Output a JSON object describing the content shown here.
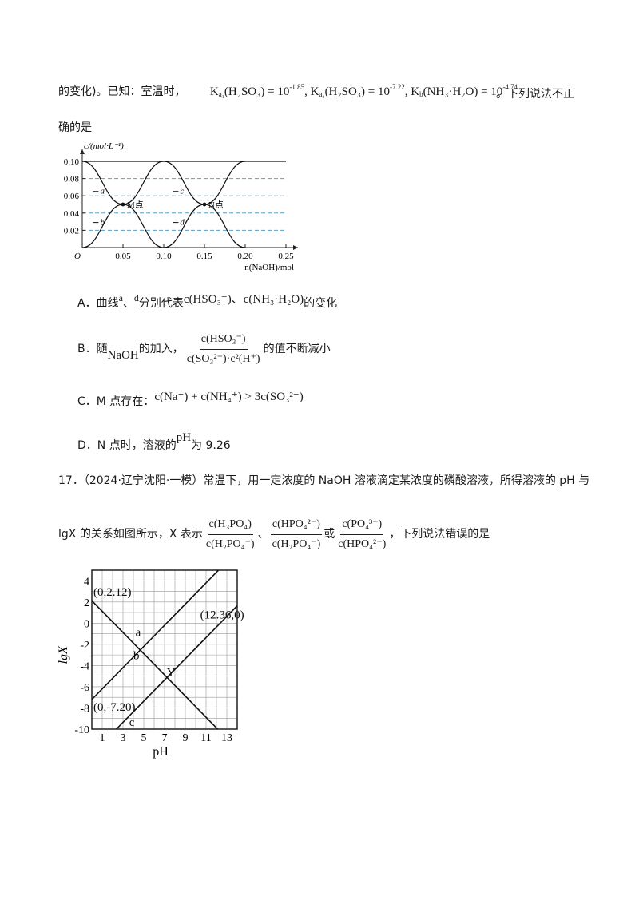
{
  "q16": {
    "intro_prefix": "的变化)。已知：室温时，",
    "ka1": "K",
    "ka1_sub": "a₁",
    "ka1_body": "(H₂SO₃) = 10",
    "ka1_exp": "-1.85",
    "ka2": ", K",
    "ka2_sub": "a₂",
    "ka2_body": "(H₂SO₃) = 10",
    "ka2_exp": "-7.22",
    "kb": ", K",
    "kb_sub": "b",
    "kb_body": "(NH₃·H₂O) = 10",
    "kb_exp": "-4.74",
    "intro_suffix": "。下列说法不正",
    "intro_line2": "确的是",
    "options": {
      "A_prefix": "A．曲线",
      "A_a": "a",
      "A_sep": "、",
      "A_d": "d",
      "A_mid": "分别代表",
      "A_expr": "c(HSO₃⁻)、c(NH₃·H₂O)",
      "A_suffix": "的变化",
      "B_prefix": "B．随",
      "B_naoh": "NaOH",
      "B_mid": "的加入，",
      "B_num": "c(HSO₃⁻)",
      "B_den": "c(SO₃²⁻)·c²(H⁺)",
      "B_suffix": "的值不断减小",
      "C_prefix": "C．M 点存在：",
      "C_expr": "c(Na⁺) + c(NH₄⁺) > 3c(SO₃²⁻)",
      "D_prefix": "D．N 点时，溶液的",
      "D_ph": "pH",
      "D_suffix": "为 9.26"
    }
  },
  "q17": {
    "line1": "17．（2024·辽宁沈阳·一模）常温下，用一定浓度的 NaOH 溶液滴定某浓度的磷酸溶液，所得溶液的 pH 与",
    "line2_prefix": "lgX 的关系如图所示，X 表示",
    "f1_num": "c(H₃PO₄)",
    "f1_den": "c(H₂PO₄⁻)",
    "sep1": "、",
    "f2_num": "c(HPO₄²⁻)",
    "f2_den": "c(H₂PO₄⁻)",
    "sep2": "或",
    "f3_num": "c(PO₄³⁻)",
    "f3_den": "c(HPO₄²⁻)",
    "line2_suffix": "，下列说法错误的是"
  },
  "chart_data": [
    {
      "type": "line",
      "ylabel": "c/(mol·L⁻¹)",
      "xlabel": "n(NaOH)/mol",
      "origin_label": "O",
      "xlim": [
        0,
        0.25
      ],
      "ylim": [
        0,
        0.1
      ],
      "x_ticks": [
        "0.05",
        "0.10",
        "0.15",
        "0.20",
        "0.25"
      ],
      "y_ticks": [
        "0.02",
        "0.04",
        "0.06",
        "0.08",
        "0.10"
      ],
      "grid": "dashed horizontal lines",
      "series": [
        {
          "name": "a",
          "x": [
            0,
            0.05,
            0.1
          ],
          "y": [
            0.1,
            0.05,
            0.0
          ]
        },
        {
          "name": "b",
          "x": [
            0,
            0.05,
            0.1,
            0.2
          ],
          "y": [
            0.0,
            0.05,
            0.1,
            0.1
          ]
        },
        {
          "name": "c",
          "x": [
            0,
            0.1,
            0.15,
            0.2
          ],
          "y": [
            0.1,
            0.1,
            0.05,
            0.0
          ]
        },
        {
          "name": "d",
          "x": [
            0.1,
            0.15,
            0.2,
            0.25
          ],
          "y": [
            0.0,
            0.05,
            0.1,
            0.1
          ]
        }
      ],
      "annotations": [
        {
          "text": "M点",
          "x": 0.05,
          "y": 0.05
        },
        {
          "text": "N点",
          "x": 0.15,
          "y": 0.05
        }
      ]
    },
    {
      "type": "line",
      "xlabel": "pH",
      "ylabel": "lgX",
      "xlim": [
        0,
        14
      ],
      "ylim": [
        -10,
        5
      ],
      "x_ticks": [
        "1",
        "3",
        "5",
        "7",
        "9",
        "11",
        "13"
      ],
      "y_ticks": [
        "4",
        "2",
        "0",
        "-2",
        "-4",
        "-6",
        "-8",
        "-10"
      ],
      "grid": true,
      "series": [
        {
          "name": "a",
          "x": [
            0,
            12.12
          ],
          "y": [
            2.12,
            -10
          ]
        },
        {
          "name": "b",
          "x": [
            0,
            12.2
          ],
          "y": [
            -7.2,
            5
          ]
        },
        {
          "name": "c",
          "x": [
            2.36,
            14
          ],
          "y": [
            -10,
            1.64
          ]
        }
      ],
      "annotations": [
        {
          "text": "(0,2.12)",
          "x": 0,
          "y": 2.12
        },
        {
          "text": "(12.36,0)",
          "x": 12.36,
          "y": 0
        },
        {
          "text": "(0,-7.20)",
          "x": 0,
          "y": -7.2
        },
        {
          "text": "a",
          "x": 4.2,
          "y": -1.2
        },
        {
          "text": "b",
          "x": 4.0,
          "y": -3.4
        },
        {
          "text": "c",
          "x": 3.6,
          "y": -9.7
        },
        {
          "text": "Y",
          "x": 7.2,
          "y": -5.0
        }
      ]
    }
  ]
}
